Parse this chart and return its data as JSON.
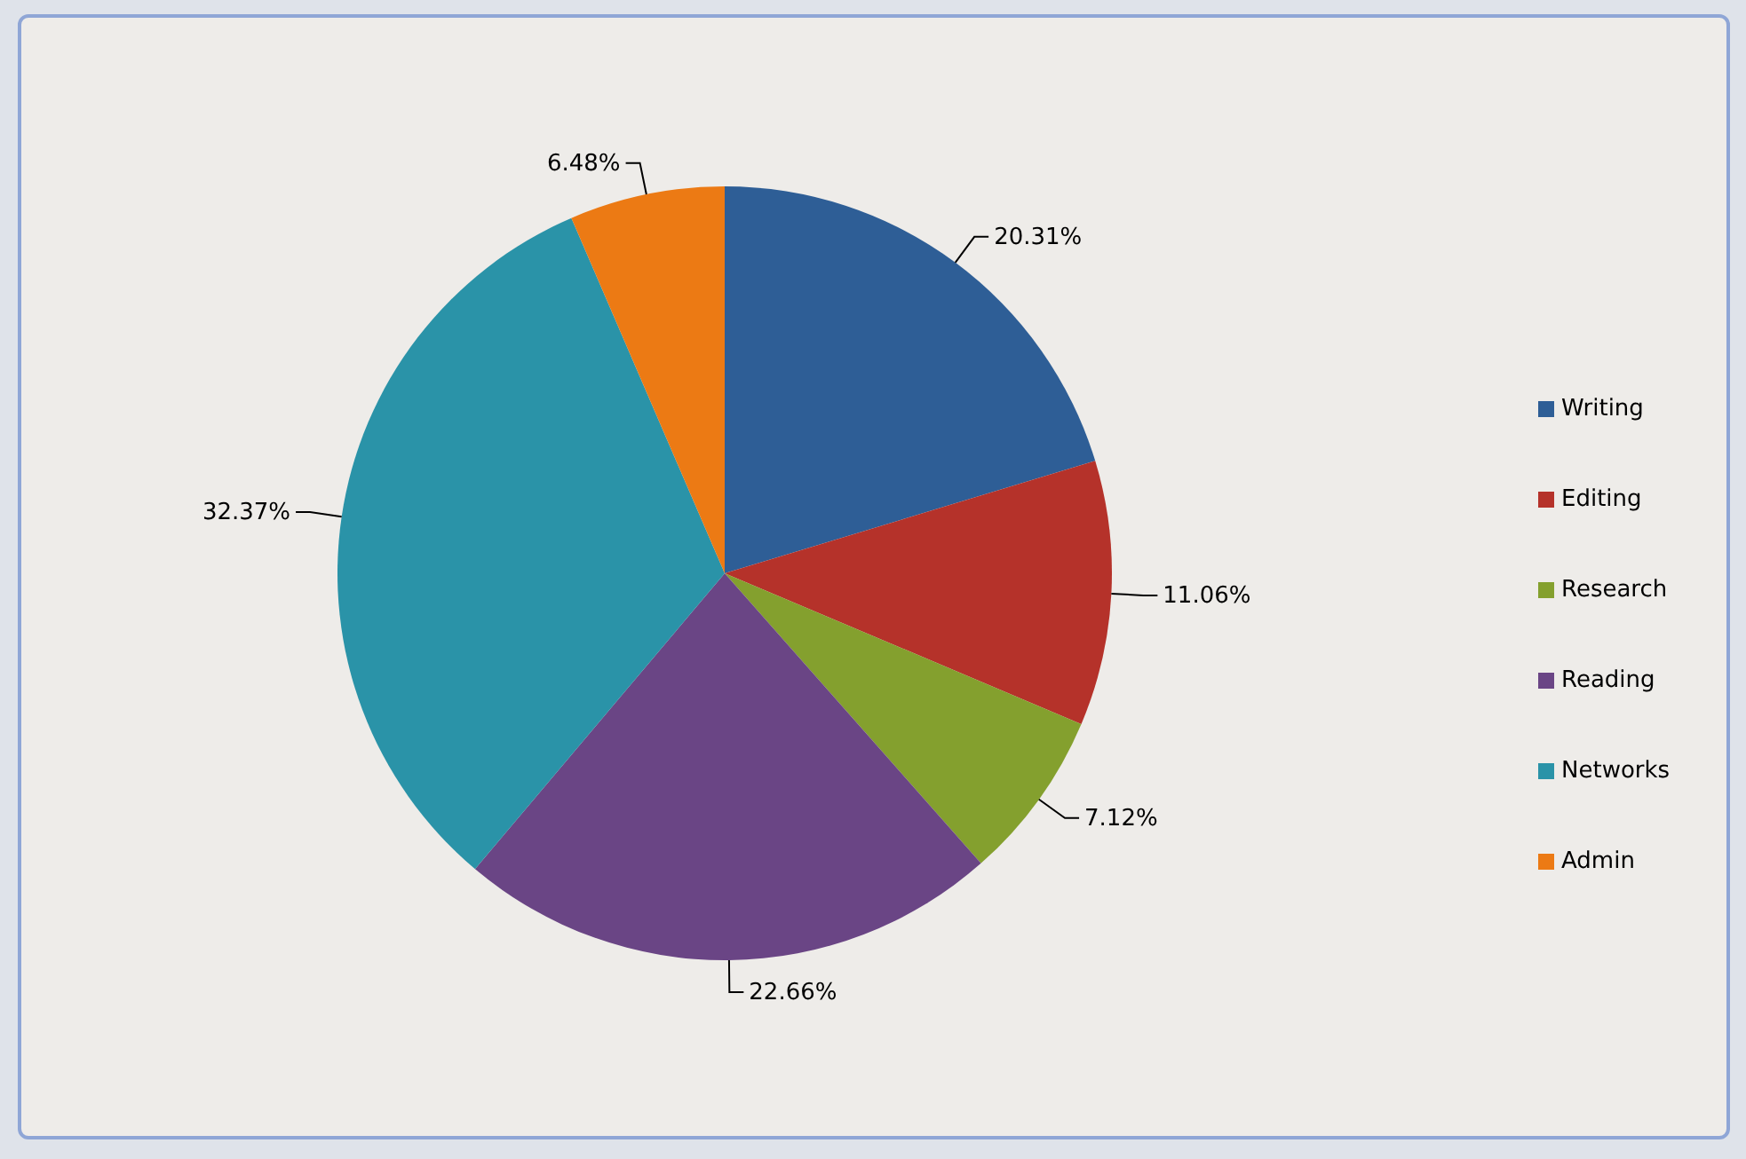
{
  "chart_data": {
    "type": "pie",
    "categories": [
      "Writing",
      "Editing",
      "Research",
      "Reading",
      "Networks",
      "Admin"
    ],
    "values": [
      20.31,
      11.06,
      7.12,
      22.66,
      32.37,
      6.48
    ],
    "colors": [
      "#2e5e96",
      "#b5322a",
      "#84a02e",
      "#6a4585",
      "#2a93a8",
      "#ec7a14"
    ],
    "value_labels": [
      "20.31%",
      "11.06%",
      "7.12%",
      "22.66%",
      "32.37%",
      "6.48%"
    ],
    "legend": "right"
  }
}
